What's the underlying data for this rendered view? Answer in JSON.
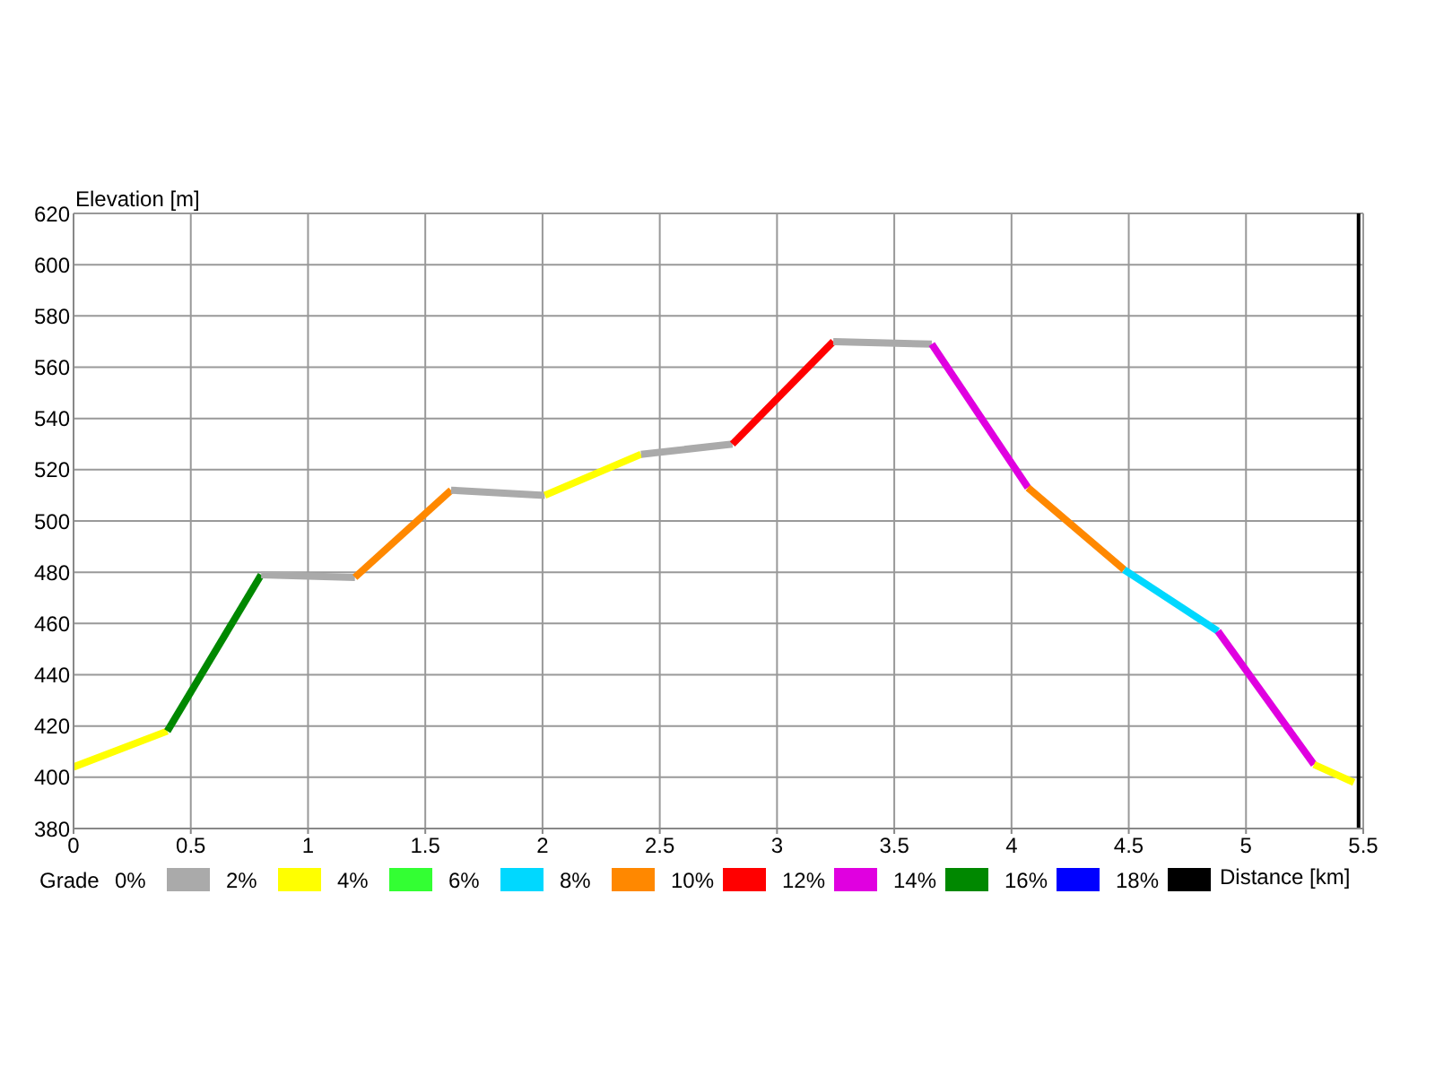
{
  "chart_data": {
    "type": "line",
    "xlabel": "Distance [km]",
    "ylabel": "Elevation [m]",
    "clabel": "Grade",
    "xlim": [
      0,
      5.5
    ],
    "xticks": [
      0,
      0.5,
      1,
      1.5,
      2,
      2.5,
      3,
      3.5,
      4,
      4.5,
      5,
      5.5
    ],
    "ylim": [
      380,
      620
    ],
    "yticks": [
      380,
      400,
      420,
      440,
      460,
      480,
      500,
      520,
      540,
      560,
      580,
      600,
      620
    ],
    "grid": true,
    "marker": "none",
    "line_style": "solid",
    "annotations": [
      "0%",
      "2%",
      "4%",
      "6%",
      "8%",
      "10%",
      "12%",
      "14%",
      "16%",
      "18%"
    ],
    "colors": [
      "#aaaaaa",
      "#ffff00",
      "#33ff33",
      "#00d8ff",
      "#ff8800",
      "#ff0000",
      "#e000e0",
      "#008800",
      "#0000ff",
      "#000000"
    ],
    "ref_lines": [
      {
        "axis": "x",
        "value": 5.48,
        "color": "#000000"
      }
    ],
    "series": [
      {
        "color": "#ffff00",
        "x": [
          0,
          0.4
        ],
        "values": [
          404,
          418
        ]
      },
      {
        "color": "#008800",
        "x": [
          0.4,
          0.8
        ],
        "values": [
          418,
          479
        ]
      },
      {
        "color": "#aaaaaa",
        "x": [
          0.8,
          1.2
        ],
        "values": [
          479,
          478
        ]
      },
      {
        "color": "#ff8800",
        "x": [
          1.2,
          1.61
        ],
        "values": [
          478,
          512
        ]
      },
      {
        "color": "#aaaaaa",
        "x": [
          1.61,
          2.01
        ],
        "values": [
          512,
          510
        ]
      },
      {
        "color": "#ffff00",
        "x": [
          2.01,
          2.42
        ],
        "values": [
          510,
          526
        ]
      },
      {
        "color": "#aaaaaa",
        "x": [
          2.42,
          2.81
        ],
        "values": [
          526,
          530
        ]
      },
      {
        "color": "#ff0000",
        "x": [
          2.81,
          3.24
        ],
        "values": [
          530,
          570
        ]
      },
      {
        "color": "#aaaaaa",
        "x": [
          3.24,
          3.66
        ],
        "values": [
          570,
          569
        ]
      },
      {
        "color": "#e000e0",
        "x": [
          3.66,
          4.07
        ],
        "values": [
          569,
          513
        ]
      },
      {
        "color": "#ff8800",
        "x": [
          4.07,
          4.48
        ],
        "values": [
          513,
          481
        ]
      },
      {
        "color": "#00d8ff",
        "x": [
          4.48,
          4.88
        ],
        "values": [
          481,
          457
        ]
      },
      {
        "color": "#e000e0",
        "x": [
          4.88,
          5.29
        ],
        "values": [
          457,
          405
        ]
      },
      {
        "color": "#ffff00",
        "x": [
          5.29,
          5.46
        ],
        "values": [
          405,
          398
        ]
      }
    ]
  }
}
